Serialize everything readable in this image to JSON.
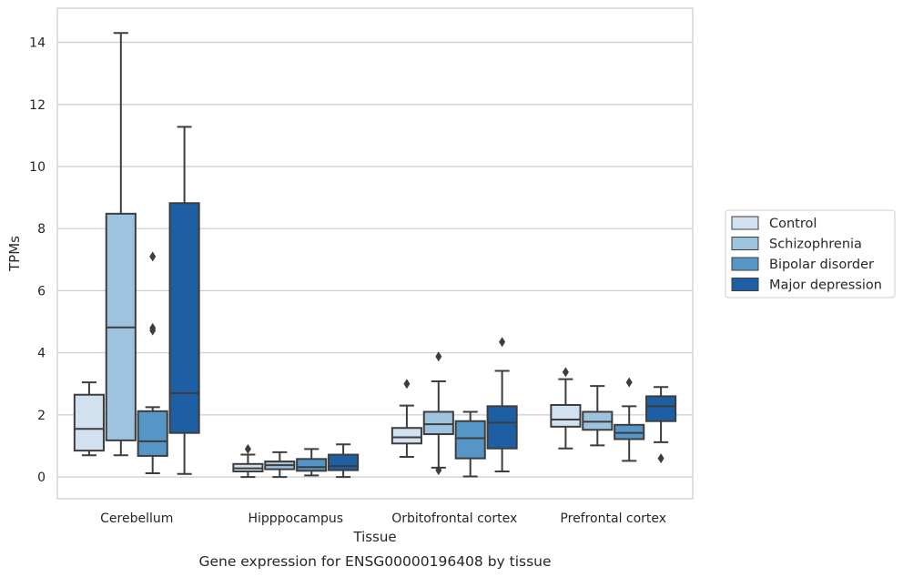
{
  "caption": "Gene expression for ENSG00000196408 by tissue",
  "chart_data": {
    "type": "box",
    "xlabel": "Tissue",
    "ylabel": "TPMs",
    "ylim": [
      -0.7,
      15.1
    ],
    "yticks": [
      0,
      2,
      4,
      6,
      8,
      10,
      12,
      14
    ],
    "grid": "horizontal",
    "legend_position": "right",
    "categories": [
      "Cerebellum",
      "Hipppocampus",
      "Orbitofrontal cortex",
      "Prefrontal cortex"
    ],
    "series": [
      {
        "name": "Control",
        "color": "#d1e1f0",
        "boxes": [
          {
            "whislo": 0.7,
            "q1": 0.85,
            "med": 1.55,
            "q3": 2.65,
            "whishi": 3.05,
            "fliers": []
          },
          {
            "whislo": 0.0,
            "q1": 0.18,
            "med": 0.28,
            "q3": 0.42,
            "whishi": 0.72,
            "fliers": [
              0.9
            ]
          },
          {
            "whislo": 0.65,
            "q1": 1.08,
            "med": 1.28,
            "q3": 1.58,
            "whishi": 2.3,
            "fliers": [
              3.0
            ]
          },
          {
            "whislo": 0.92,
            "q1": 1.62,
            "med": 1.85,
            "q3": 2.32,
            "whishi": 3.15,
            "fliers": [
              3.38
            ]
          }
        ]
      },
      {
        "name": "Schizophrenia",
        "color": "#9dc3de",
        "boxes": [
          {
            "whislo": 0.7,
            "q1": 1.18,
            "med": 4.82,
            "q3": 8.48,
            "whishi": 14.3,
            "fliers": []
          },
          {
            "whislo": 0.0,
            "q1": 0.25,
            "med": 0.38,
            "q3": 0.5,
            "whishi": 0.8,
            "fliers": []
          },
          {
            "whislo": 0.3,
            "q1": 1.38,
            "med": 1.7,
            "q3": 2.1,
            "whishi": 3.08,
            "fliers": [
              3.88,
              0.22
            ]
          },
          {
            "whislo": 1.02,
            "q1": 1.52,
            "med": 1.78,
            "q3": 2.1,
            "whishi": 2.93,
            "fliers": []
          }
        ]
      },
      {
        "name": "Bipolar disorder",
        "color": "#5596c6",
        "boxes": [
          {
            "whislo": 0.12,
            "q1": 0.68,
            "med": 1.15,
            "q3": 2.12,
            "whishi": 2.25,
            "fliers": [
              7.1,
              4.8,
              4.72
            ]
          },
          {
            "whislo": 0.05,
            "q1": 0.2,
            "med": 0.32,
            "q3": 0.58,
            "whishi": 0.9,
            "fliers": []
          },
          {
            "whislo": 0.02,
            "q1": 0.6,
            "med": 1.25,
            "q3": 1.8,
            "whishi": 2.1,
            "fliers": []
          },
          {
            "whislo": 0.52,
            "q1": 1.22,
            "med": 1.42,
            "q3": 1.68,
            "whishi": 2.28,
            "fliers": [
              3.05
            ]
          }
        ]
      },
      {
        "name": "Major depression",
        "color": "#1e5fa3",
        "boxes": [
          {
            "whislo": 0.1,
            "q1": 1.42,
            "med": 2.7,
            "q3": 8.82,
            "whishi": 11.28,
            "fliers": []
          },
          {
            "whislo": 0.0,
            "q1": 0.22,
            "med": 0.35,
            "q3": 0.72,
            "whishi": 1.05,
            "fliers": []
          },
          {
            "whislo": 0.18,
            "q1": 0.92,
            "med": 1.75,
            "q3": 2.28,
            "whishi": 3.42,
            "fliers": [
              4.35
            ]
          },
          {
            "whislo": 1.12,
            "q1": 1.8,
            "med": 2.28,
            "q3": 2.6,
            "whishi": 2.9,
            "fliers": [
              0.6
            ]
          }
        ]
      }
    ]
  }
}
